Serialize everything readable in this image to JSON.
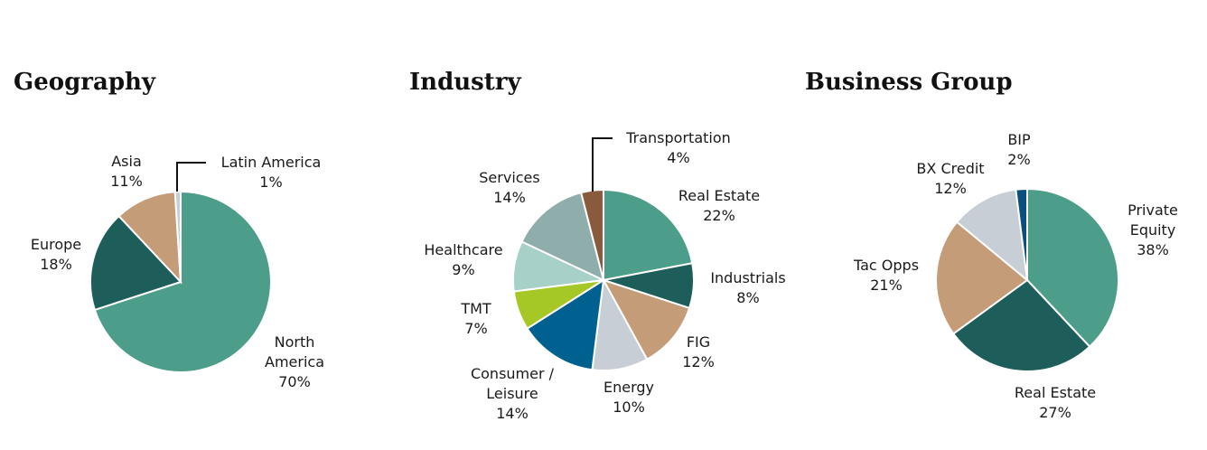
{
  "chart_data": [
    {
      "type": "pie",
      "title": "Geography",
      "categories": [
        "North America",
        "Europe",
        "Asia",
        "Latin America"
      ],
      "values": [
        70,
        18,
        11,
        1
      ],
      "value_labels": [
        "70%",
        "18%",
        "11%",
        "1%"
      ],
      "label_lines": [
        [
          "North",
          "America"
        ],
        [
          "Europe"
        ],
        [
          "Asia"
        ],
        [
          "Latin America"
        ]
      ],
      "colors": [
        "#4c9e8a",
        "#1d5e5a",
        "#c49c78",
        "#c8ced6"
      ],
      "legend": "none"
    },
    {
      "type": "pie",
      "title": "Industry",
      "categories": [
        "Real Estate",
        "Industrials",
        "FIG",
        "Energy",
        "Consumer / Leisure",
        "TMT",
        "Healthcare",
        "Services",
        "Transportation"
      ],
      "values": [
        22,
        8,
        12,
        10,
        14,
        7,
        9,
        14,
        4
      ],
      "value_labels": [
        "22%",
        "8%",
        "12%",
        "10%",
        "14%",
        "7%",
        "9%",
        "14%",
        "4%"
      ],
      "label_lines": [
        [
          "Real Estate"
        ],
        [
          "Industrials"
        ],
        [
          "FIG"
        ],
        [
          "Energy"
        ],
        [
          "Consumer /",
          "Leisure"
        ],
        [
          "TMT"
        ],
        [
          "Healthcare"
        ],
        [
          "Services"
        ],
        [
          "Transportation"
        ]
      ],
      "colors": [
        "#4c9e8a",
        "#1d5e5a",
        "#c49c78",
        "#c8ced6",
        "#00608f",
        "#a6c826",
        "#a6d0c8",
        "#8eadab",
        "#8a5a3c"
      ],
      "legend": "none"
    },
    {
      "type": "pie",
      "title": "Business Group",
      "categories": [
        "Private Equity",
        "Real Estate",
        "Tac Opps",
        "BX Credit",
        "BIP"
      ],
      "values": [
        38,
        27,
        21,
        12,
        2
      ],
      "value_labels": [
        "38%",
        "27%",
        "21%",
        "12%",
        "2%"
      ],
      "label_lines": [
        [
          "Private",
          "Equity"
        ],
        [
          "Real Estate"
        ],
        [
          "Tac Opps"
        ],
        [
          "BX Credit"
        ],
        [
          "BIP"
        ]
      ],
      "colors": [
        "#4c9e8a",
        "#1d5e5a",
        "#c49c78",
        "#c8ced6",
        "#0b4f80"
      ],
      "legend": "none"
    }
  ]
}
